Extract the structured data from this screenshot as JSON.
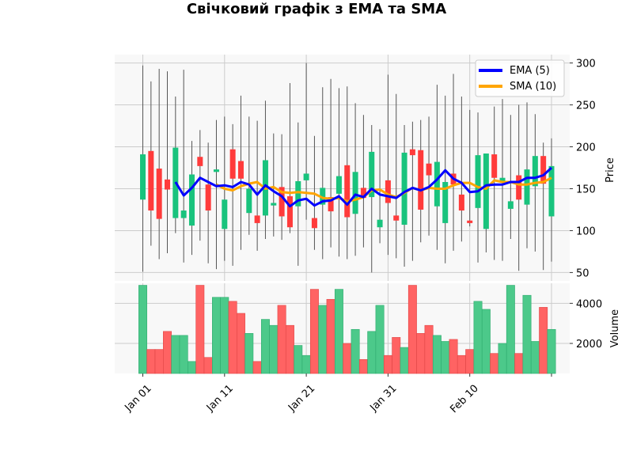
{
  "chart_data": {
    "type": "candlestick",
    "title": "Свічковий графік з EMA та SMA",
    "price_axis": {
      "label": "Price",
      "ylim": [
        40,
        310
      ],
      "ticks": [
        50,
        100,
        150,
        200,
        250,
        300
      ]
    },
    "volume_axis": {
      "label": "Volume",
      "ylim": [
        500,
        5000
      ],
      "ticks": [
        2000,
        4000
      ]
    },
    "x_ticks": [
      {
        "label": "Jan 01",
        "day": 0
      },
      {
        "label": "Jan 11",
        "day": 10
      },
      {
        "label": "Jan 21",
        "day": 20
      },
      {
        "label": "Jan 31",
        "day": 30
      },
      {
        "label": "Feb 10",
        "day": 40
      },
      {
        "label": "",
        "day": 50
      }
    ],
    "grid": true,
    "legend": {
      "placement": "top-right",
      "entries": [
        {
          "name": "EMA (5)",
          "color": "#0000ff"
        },
        {
          "name": "SMA (10)",
          "color": "#ffa500"
        }
      ]
    },
    "colors": {
      "up": "#19c37d",
      "down": "#ff3b3b",
      "wick": "#555555",
      "up_volume": "#4cc98a",
      "down_volume": "#ff6363"
    },
    "candles": [
      {
        "date": "Jan 01",
        "open": 137,
        "high": 297,
        "low": 51,
        "close": 191,
        "volume": 4900
      },
      {
        "date": "Jan 02",
        "open": 195,
        "high": 278,
        "low": 82,
        "close": 124,
        "volume": 1700
      },
      {
        "date": "Jan 03",
        "open": 174,
        "high": 293,
        "low": 66,
        "close": 114,
        "volume": 1700
      },
      {
        "date": "Jan 04",
        "open": 161,
        "high": 290,
        "low": 73,
        "close": 149,
        "volume": 2600
      },
      {
        "date": "Jan 05",
        "open": 115,
        "high": 260,
        "low": 97,
        "close": 199,
        "volume": 2400
      },
      {
        "date": "Jan 06",
        "open": 115,
        "high": 292,
        "low": 62,
        "close": 124,
        "volume": 2400
      },
      {
        "date": "Jan 07",
        "open": 106,
        "high": 207,
        "low": 71,
        "close": 167,
        "volume": 1100
      },
      {
        "date": "Jan 08",
        "open": 188,
        "high": 220,
        "low": 88,
        "close": 177,
        "volume": 4900
      },
      {
        "date": "Jan 09",
        "open": 155,
        "high": 205,
        "low": 61,
        "close": 124,
        "volume": 1300
      },
      {
        "date": "Jan 10",
        "open": 170,
        "high": 232,
        "low": 54,
        "close": 173,
        "volume": 4300
      },
      {
        "date": "Jan 11",
        "open": 102,
        "high": 236,
        "low": 64,
        "close": 137,
        "volume": 4300
      },
      {
        "date": "Jan 12",
        "open": 197,
        "high": 227,
        "low": 58,
        "close": 162,
        "volume": 4100
      },
      {
        "date": "Jan 13",
        "open": 183,
        "high": 261,
        "low": 77,
        "close": 162,
        "volume": 3500
      },
      {
        "date": "Jan 14",
        "open": 121,
        "high": 236,
        "low": 95,
        "close": 150,
        "volume": 2500
      },
      {
        "date": "Jan 15",
        "open": 118,
        "high": 231,
        "low": 76,
        "close": 109,
        "volume": 1100
      },
      {
        "date": "Jan 16",
        "open": 118,
        "high": 255,
        "low": 90,
        "close": 184,
        "volume": 3200
      },
      {
        "date": "Jan 17",
        "open": 130,
        "high": 216,
        "low": 93,
        "close": 133,
        "volume": 2900
      },
      {
        "date": "Jan 18",
        "open": 152,
        "high": 215,
        "low": 89,
        "close": 117,
        "volume": 3900
      },
      {
        "date": "Jan 19",
        "open": 141,
        "high": 276,
        "low": 97,
        "close": 104,
        "volume": 2900
      },
      {
        "date": "Jan 20",
        "open": 129,
        "high": 229,
        "low": 58,
        "close": 159,
        "volume": 1900
      },
      {
        "date": "Jan 21",
        "open": 160,
        "high": 300,
        "low": 113,
        "close": 168,
        "volume": 1400
      },
      {
        "date": "Jan 22",
        "open": 115,
        "high": 213,
        "low": 77,
        "close": 103,
        "volume": 4700
      },
      {
        "date": "Jan 23",
        "open": 131,
        "high": 271,
        "low": 66,
        "close": 151,
        "volume": 3900
      },
      {
        "date": "Jan 24",
        "open": 140,
        "high": 281,
        "low": 80,
        "close": 123,
        "volume": 4200
      },
      {
        "date": "Jan 25",
        "open": 144,
        "high": 270,
        "low": 69,
        "close": 165,
        "volume": 4700
      },
      {
        "date": "Jan 26",
        "open": 178,
        "high": 272,
        "low": 66,
        "close": 116,
        "volume": 2000
      },
      {
        "date": "Jan 27",
        "open": 120,
        "high": 252,
        "low": 70,
        "close": 170,
        "volume": 2700
      },
      {
        "date": "Jan 28",
        "open": 151,
        "high": 238,
        "low": 80,
        "close": 139,
        "volume": 1200
      },
      {
        "date": "Jan 29",
        "open": 140,
        "high": 226,
        "low": 50,
        "close": 194,
        "volume": 2600
      },
      {
        "date": "Jan 30",
        "open": 104,
        "high": 221,
        "low": 85,
        "close": 113,
        "volume": 3900
      },
      {
        "date": "Jan 31",
        "open": 160,
        "high": 286,
        "low": 71,
        "close": 133,
        "volume": 1400
      },
      {
        "date": "Feb 01",
        "open": 118,
        "high": 263,
        "low": 67,
        "close": 112,
        "volume": 2300
      },
      {
        "date": "Feb 02",
        "open": 107,
        "high": 226,
        "low": 57,
        "close": 193,
        "volume": 1800
      },
      {
        "date": "Feb 03",
        "open": 197,
        "high": 230,
        "low": 64,
        "close": 190,
        "volume": 4900
      },
      {
        "date": "Feb 04",
        "open": 196,
        "high": 232,
        "low": 86,
        "close": 125,
        "volume": 2500
      },
      {
        "date": "Feb 05",
        "open": 180,
        "high": 236,
        "low": 94,
        "close": 166,
        "volume": 2900
      },
      {
        "date": "Feb 06",
        "open": 129,
        "high": 274,
        "low": 77,
        "close": 182,
        "volume": 2400
      },
      {
        "date": "Feb 07",
        "open": 109,
        "high": 261,
        "low": 61,
        "close": 158,
        "volume": 2100
      },
      {
        "date": "Feb 08",
        "open": 168,
        "high": 287,
        "low": 76,
        "close": 155,
        "volume": 2200
      },
      {
        "date": "Feb 09",
        "open": 143,
        "high": 260,
        "low": 87,
        "close": 124,
        "volume": 1400
      },
      {
        "date": "Feb 10",
        "open": 112,
        "high": 244,
        "low": 105,
        "close": 109,
        "volume": 1700
      },
      {
        "date": "Feb 11",
        "open": 127,
        "high": 241,
        "low": 62,
        "close": 190,
        "volume": 4100
      },
      {
        "date": "Feb 12",
        "open": 102,
        "high": 191,
        "low": 74,
        "close": 192,
        "volume": 3700
      },
      {
        "date": "Feb 13",
        "open": 191,
        "high": 248,
        "low": 65,
        "close": 163,
        "volume": 1500
      },
      {
        "date": "Feb 14",
        "open": 159,
        "high": 257,
        "low": 64,
        "close": 163,
        "volume": 2000
      },
      {
        "date": "Feb 15",
        "open": 126,
        "high": 238,
        "low": 90,
        "close": 135,
        "volume": 4900
      },
      {
        "date": "Feb 16",
        "open": 166,
        "high": 250,
        "low": 52,
        "close": 137,
        "volume": 1500
      },
      {
        "date": "Feb 17",
        "open": 131,
        "high": 253,
        "low": 79,
        "close": 173,
        "volume": 4400
      },
      {
        "date": "Feb 18",
        "open": 153,
        "high": 239,
        "low": 75,
        "close": 189,
        "volume": 2100
      },
      {
        "date": "Feb 19",
        "open": 189,
        "high": 205,
        "low": 53,
        "close": 156,
        "volume": 3800
      },
      {
        "date": "Feb 20",
        "open": 117,
        "high": 210,
        "low": 63,
        "close": 177,
        "volume": 2700
      }
    ],
    "ema5": [
      null,
      null,
      null,
      null,
      158,
      142,
      151,
      163,
      158,
      153,
      154,
      152,
      158,
      155,
      143,
      154,
      147,
      141,
      129,
      136,
      138,
      130,
      135,
      136,
      141,
      131,
      143,
      140,
      150,
      143,
      141,
      139,
      146,
      151,
      148,
      152,
      161,
      172,
      162,
      157,
      146,
      147,
      154,
      155,
      155,
      158,
      158,
      163,
      163,
      166,
      175
    ],
    "sma10": [
      null,
      null,
      null,
      null,
      null,
      null,
      null,
      null,
      null,
      155,
      150,
      148,
      153,
      156,
      158,
      150,
      152,
      146,
      145,
      146,
      145,
      144,
      139,
      138,
      139,
      135,
      137,
      140,
      148,
      149,
      143,
      140,
      145,
      151,
      148,
      151,
      150,
      150,
      154,
      157,
      157,
      152,
      150,
      160,
      158,
      158,
      155,
      155,
      157,
      158,
      163
    ]
  }
}
